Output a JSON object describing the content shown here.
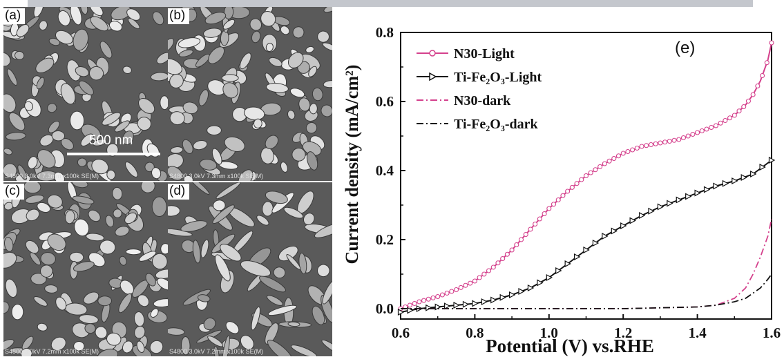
{
  "sem_panels": [
    {
      "label": "(a)",
      "footer": "S4800 3.0kV 7.3mm x100k SE(M)",
      "scale_bar": "500 nm"
    },
    {
      "label": "(b)",
      "footer": "S4800 3.0kV 7.3mm x100k SE(M)"
    },
    {
      "label": "(c)",
      "footer": "S4800 3.0kV 7.2mm x100k SE(M)"
    },
    {
      "label": "(d)",
      "footer": "S4800 3.0kV 7.2mm x100k SE(M)"
    }
  ],
  "chart_data": {
    "type": "line",
    "panel_label": "(e)",
    "xlabel": "Potential (V) vs.RHE",
    "ylabel": "Current density (mA/cm²)",
    "xlim": [
      0.6,
      1.6
    ],
    "ylim": [
      -0.03,
      0.8
    ],
    "xticks": [
      "0.6",
      "0.8",
      "1.0",
      "1.2",
      "1.4",
      "1.6"
    ],
    "yticks": [
      "0.0",
      "0.2",
      "0.4",
      "0.6",
      "0.8"
    ],
    "legend_position": "top-left",
    "series": [
      {
        "name": "N30-Light",
        "color": "#d4408c",
        "style": "solid",
        "marker": "circle",
        "x": [
          0.6,
          0.65,
          0.7,
          0.75,
          0.8,
          0.85,
          0.9,
          0.95,
          1.0,
          1.05,
          1.1,
          1.15,
          1.2,
          1.25,
          1.3,
          1.35,
          1.4,
          1.45,
          1.5,
          1.53,
          1.55,
          1.57,
          1.59,
          1.6
        ],
        "y": [
          0.0,
          0.02,
          0.035,
          0.055,
          0.08,
          0.12,
          0.17,
          0.23,
          0.29,
          0.34,
          0.385,
          0.42,
          0.45,
          0.47,
          0.48,
          0.49,
          0.51,
          0.53,
          0.56,
          0.59,
          0.62,
          0.66,
          0.72,
          0.77
        ]
      },
      {
        "name": "Ti-Fe₂O₃-Light",
        "color": "#111111",
        "style": "solid",
        "marker": "triangle",
        "x": [
          0.6,
          0.65,
          0.7,
          0.75,
          0.8,
          0.85,
          0.9,
          0.95,
          1.0,
          1.05,
          1.1,
          1.15,
          1.2,
          1.25,
          1.3,
          1.35,
          1.4,
          1.45,
          1.5,
          1.55,
          1.6
        ],
        "y": [
          -0.01,
          0.0,
          0.005,
          0.01,
          0.015,
          0.025,
          0.04,
          0.06,
          0.09,
          0.13,
          0.17,
          0.21,
          0.24,
          0.27,
          0.295,
          0.315,
          0.335,
          0.355,
          0.37,
          0.39,
          0.43
        ]
      },
      {
        "name": "N30-dark",
        "color": "#d4408c",
        "style": "dashdot",
        "marker": "none",
        "x": [
          0.6,
          0.8,
          1.0,
          1.2,
          1.4,
          1.45,
          1.5,
          1.53,
          1.55,
          1.57,
          1.59,
          1.6
        ],
        "y": [
          0.0,
          0.0,
          0.0,
          0.0,
          0.005,
          0.01,
          0.03,
          0.06,
          0.1,
          0.15,
          0.21,
          0.26
        ]
      },
      {
        "name": "Ti-Fe₂O₃-dark",
        "color": "#111111",
        "style": "dashdot",
        "marker": "none",
        "x": [
          0.6,
          0.8,
          1.0,
          1.2,
          1.4,
          1.45,
          1.5,
          1.53,
          1.55,
          1.57,
          1.59,
          1.6
        ],
        "y": [
          0.0,
          0.0,
          0.0,
          0.0,
          0.005,
          0.01,
          0.02,
          0.03,
          0.045,
          0.06,
          0.085,
          0.1
        ]
      }
    ]
  }
}
